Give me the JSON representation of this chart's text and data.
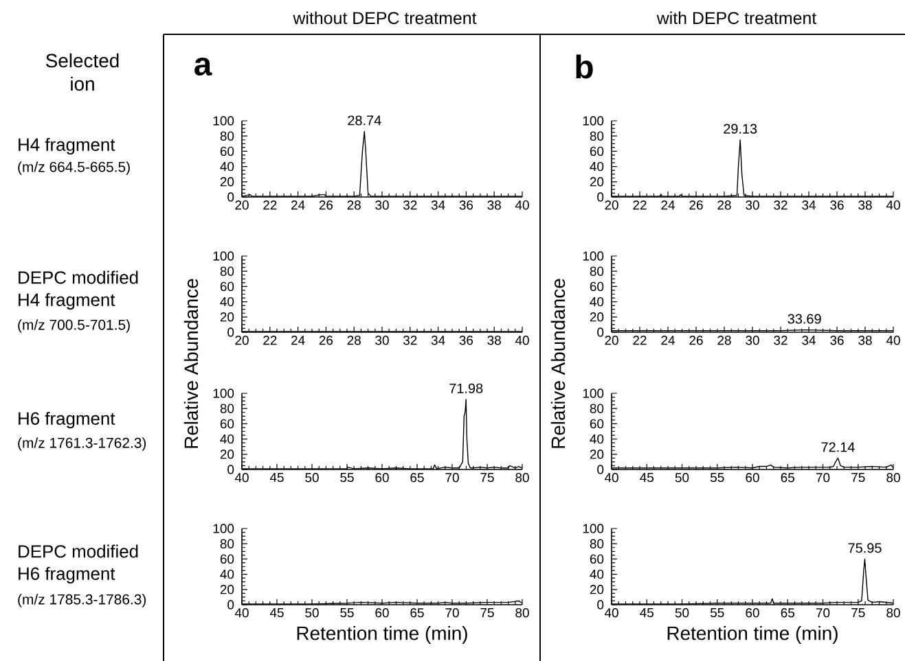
{
  "chart_data": [
    {
      "type": "line",
      "title": "without  DEPC treatment",
      "x": [
        20,
        20.6,
        20.7,
        21,
        22,
        23,
        24,
        25,
        25.6,
        25.9,
        26,
        27,
        28,
        28.4,
        28.6,
        28.74,
        28.85,
        29.0,
        29.2,
        30,
        32,
        34,
        36,
        38,
        40
      ],
      "values": [
        1,
        3,
        1,
        1,
        1,
        1,
        1,
        1,
        3,
        3,
        1,
        1,
        1,
        2,
        60,
        86,
        55,
        5,
        1,
        1,
        1,
        1,
        1,
        1,
        1
      ],
      "color": "#000000",
      "line_style": "solid",
      "xlim": [
        20,
        40
      ],
      "ylim": [
        0,
        100
      ],
      "xticks": [
        20,
        22,
        24,
        26,
        28,
        30,
        32,
        34,
        36,
        38,
        40
      ],
      "yticks": [
        0,
        20,
        40,
        60,
        80,
        100
      ],
      "annotations": [
        "Selected ion",
        "a",
        "H4 fragment",
        "(m/z 664.5-665.5)",
        {
          "text": "28.74",
          "x": 28.74,
          "y": 86
        }
      ]
    },
    {
      "type": "line",
      "title": "with DEPC treatment",
      "x": [
        20,
        22,
        23.4,
        23.5,
        23.6,
        24,
        24.8,
        24.9,
        25,
        26,
        28,
        28.9,
        29.0,
        29.13,
        29.25,
        29.4,
        30,
        32,
        34,
        36,
        38,
        40
      ],
      "values": [
        1,
        1,
        1,
        3,
        1,
        1,
        1,
        3,
        1,
        1,
        1,
        2,
        40,
        75,
        30,
        2,
        1,
        1,
        1,
        1,
        1,
        1
      ],
      "color": "#000000",
      "line_style": "solid",
      "xlim": [
        20,
        40
      ],
      "ylim": [
        0,
        100
      ],
      "xticks": [
        20,
        22,
        24,
        26,
        28,
        30,
        32,
        34,
        36,
        38,
        40
      ],
      "yticks": [
        0,
        20,
        40,
        60,
        80,
        100
      ],
      "annotations": [
        "b",
        {
          "text": "29.13",
          "x": 29.13,
          "y": 75
        }
      ]
    },
    {
      "type": "line",
      "ylabel": "Relative Abundance",
      "x": [
        20,
        24,
        28,
        32,
        36,
        40
      ],
      "values": [
        1,
        1,
        1,
        1,
        1,
        1
      ],
      "color": "#000000",
      "line_style": "solid",
      "xlim": [
        20,
        40
      ],
      "ylim": [
        0,
        100
      ],
      "xticks": [
        20,
        22,
        24,
        26,
        28,
        30,
        32,
        34,
        36,
        38,
        40
      ],
      "yticks": [
        0,
        20,
        40,
        60,
        80,
        100
      ],
      "annotations": [
        "DEPC modified",
        "H4 fragment",
        "(m/z 700.5-701.5)"
      ]
    },
    {
      "type": "line",
      "ylabel": "Relative Abundance",
      "x": [
        20,
        24,
        28,
        32,
        33.69,
        36,
        38,
        40
      ],
      "values": [
        2,
        2,
        2,
        2,
        3,
        2,
        2,
        2
      ],
      "color": "#000000",
      "line_style": "solid",
      "xlim": [
        20,
        40
      ],
      "ylim": [
        0,
        100
      ],
      "xticks": [
        20,
        22,
        24,
        26,
        28,
        30,
        32,
        34,
        36,
        38,
        40
      ],
      "yticks": [
        0,
        20,
        40,
        60,
        80,
        100
      ],
      "annotations": [
        {
          "text": "33.69",
          "x": 33.69,
          "y": 3
        }
      ]
    },
    {
      "type": "line",
      "x": [
        40,
        45,
        50,
        55,
        55.1,
        56,
        58,
        60,
        62,
        64,
        66,
        67.3,
        67.5,
        67.8,
        69,
        70,
        71,
        71.5,
        71.7,
        71.85,
        71.98,
        72.1,
        72.3,
        72.6,
        73,
        74,
        75,
        76,
        77,
        78,
        78.2,
        79,
        79.5,
        80
      ],
      "values": [
        1,
        1,
        1,
        1,
        3,
        1,
        2,
        1,
        2,
        1,
        1,
        1,
        6,
        1,
        3,
        2,
        2,
        10,
        70,
        75,
        92,
        40,
        8,
        2,
        2,
        3,
        2,
        3,
        2,
        2,
        5,
        2,
        4,
        2
      ],
      "color": "#000000",
      "line_style": "solid",
      "xlim": [
        40,
        80
      ],
      "ylim": [
        0,
        100
      ],
      "xticks": [
        40,
        45,
        50,
        55,
        60,
        65,
        70,
        75,
        80
      ],
      "yticks": [
        0,
        20,
        40,
        60,
        80,
        100
      ],
      "annotations": [
        "H6 fragment",
        "(m/z 1761.3-1762.3)",
        {
          "text": "71.98",
          "x": 71.98,
          "y": 92
        }
      ]
    },
    {
      "type": "line",
      "x": [
        40,
        45,
        50,
        55,
        57.8,
        60,
        61,
        62,
        62.6,
        63,
        65,
        67,
        69,
        70,
        71,
        71.5,
        71.8,
        72.14,
        72.5,
        73,
        75,
        77,
        79,
        79.7,
        80
      ],
      "values": [
        2,
        2,
        2,
        2,
        3,
        2,
        4,
        4,
        6,
        3,
        2,
        3,
        3,
        3,
        3,
        4,
        10,
        15,
        5,
        3,
        3,
        4,
        3,
        6,
        2
      ],
      "color": "#000000",
      "line_style": "solid",
      "xlim": [
        40,
        80
      ],
      "ylim": [
        0,
        100
      ],
      "xticks": [
        40,
        45,
        50,
        55,
        60,
        65,
        70,
        75,
        80
      ],
      "yticks": [
        0,
        20,
        40,
        60,
        80,
        100
      ],
      "annotations": [
        {
          "text": "72.14",
          "x": 72.14,
          "y": 15
        }
      ]
    },
    {
      "type": "line",
      "xlabel": "Retention time (min)",
      "x": [
        40,
        45,
        50,
        55,
        57,
        60,
        62,
        65,
        68,
        69,
        70,
        72,
        75,
        78,
        79.5,
        80
      ],
      "values": [
        1,
        1,
        1,
        2,
        3,
        2,
        3,
        2,
        2,
        3,
        2,
        2,
        3,
        3,
        5,
        2
      ],
      "color": "#000000",
      "line_style": "solid",
      "xlim": [
        40,
        80
      ],
      "ylim": [
        0,
        100
      ],
      "xticks": [
        40,
        45,
        50,
        55,
        60,
        65,
        70,
        75,
        80
      ],
      "yticks": [
        0,
        20,
        40,
        60,
        80,
        100
      ],
      "annotations": [
        "DEPC modified",
        "H6 fragment",
        "(m/z 1785.3-1786.3)"
      ]
    },
    {
      "type": "line",
      "xlabel": "Retention time (min)",
      "x": [
        40,
        45,
        50,
        55,
        60,
        62,
        62.6,
        62.8,
        63,
        65,
        70,
        72,
        75,
        75.5,
        75.8,
        75.95,
        76.1,
        76.4,
        77,
        78,
        80
      ],
      "values": [
        1,
        1,
        1,
        2,
        2,
        2,
        2,
        8,
        2,
        2,
        2,
        3,
        3,
        5,
        45,
        60,
        40,
        6,
        3,
        4,
        2
      ],
      "color": "#000000",
      "line_style": "solid",
      "xlim": [
        40,
        80
      ],
      "ylim": [
        0,
        100
      ],
      "xticks": [
        40,
        45,
        50,
        55,
        60,
        65,
        70,
        75,
        80
      ],
      "yticks": [
        0,
        20,
        40,
        60,
        80,
        100
      ],
      "annotations": [
        {
          "text": "75.95",
          "x": 75.95,
          "y": 60
        }
      ]
    }
  ]
}
